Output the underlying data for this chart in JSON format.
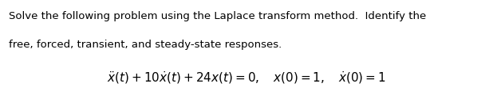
{
  "line1": "Solve the following problem using the Laplace transform method.  Identify the",
  "line2": "free, forced, transient, and steady-state responses.",
  "equation": "$\\ddot{x}(t) + 10\\dot{x}(t) + 24x(t) = 0, \\quad x(0) = 1, \\quad \\dot{x}(0) = 1$",
  "text_color": "#000000",
  "background_color": "#ffffff",
  "text_fontsize": 9.5,
  "eq_fontsize": 11.0,
  "fig_width": 6.18,
  "fig_height": 1.2,
  "dpi": 100
}
